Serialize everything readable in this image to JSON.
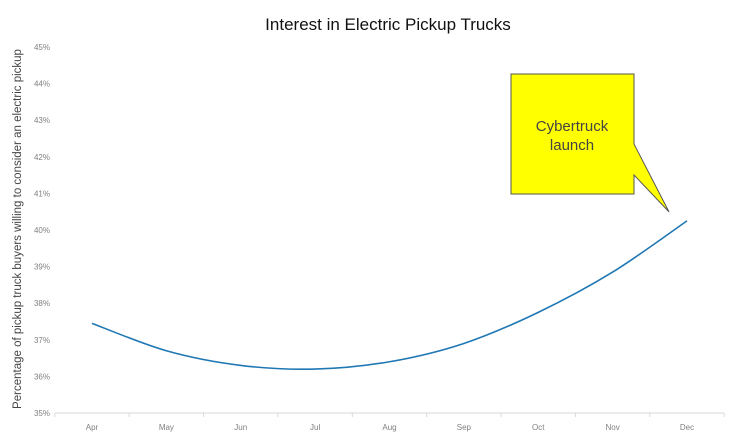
{
  "chart_data": {
    "type": "line",
    "title": "Interest in Electric Pickup Trucks",
    "xlabel": "",
    "ylabel": "Percentage of pickup truck buyers willing to consider an electric pickup",
    "categories": [
      "Apr",
      "May",
      "Jun",
      "Jul",
      "Aug",
      "Sep",
      "Oct",
      "Nov",
      "Dec"
    ],
    "yticks": [
      "35%",
      "36%",
      "37%",
      "38%",
      "39%",
      "40%",
      "41%",
      "42%",
      "43%",
      "44%",
      "45%"
    ],
    "ylim": [
      35,
      45
    ],
    "grid": false,
    "legend": "none",
    "series": [
      {
        "values": [
          37.45,
          36.7,
          36.3,
          36.2,
          36.4,
          36.9,
          37.75,
          38.85,
          40.25
        ]
      }
    ],
    "annotation": {
      "lines": [
        "Cybertruck",
        "launch"
      ],
      "target_category": "Dec",
      "target_value": 40.25
    },
    "colors": {
      "line": "#1f77b4",
      "callout_fill": "#ffff00",
      "callout_border": "#555555",
      "axis": "#d9d9d9"
    }
  }
}
